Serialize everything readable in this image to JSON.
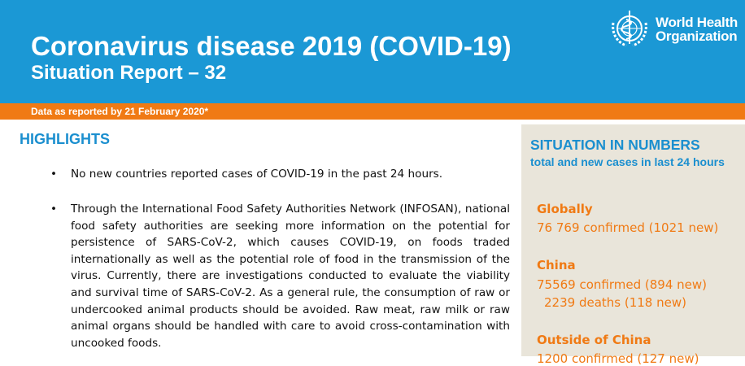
{
  "header": {
    "title": "Coronavirus disease 2019 (COVID-19)",
    "subtitle": "Situation Report – 32",
    "org_name_line1": "World Health",
    "org_name_line2": "Organization",
    "logo_icon": "who-emblem-icon"
  },
  "date_bar": {
    "text": "Data as reported by 21 February 2020*"
  },
  "highlights": {
    "heading": "HIGHLIGHTS",
    "bullets": [
      "No new countries reported cases of COVID-19 in the past 24 hours.",
      "Through the International Food Safety Authorities Network (INFOSAN), national food safety authorities are seeking more information on the potential for persistence of SARS-CoV-2, which causes COVID-19, on foods traded internationally as well as the potential role of food in the transmission of the virus. Currently, there are investigations conducted to evaluate the viability and survival time of SARS-CoV-2. As a general rule, the consumption of raw or undercooked animal products should be avoided. Raw meat, raw milk or raw animal organs should be handled with care to avoid cross-contamination with uncooked foods."
    ]
  },
  "situation": {
    "heading": "SITUATION IN NUMBERS",
    "subheading": "total and new cases in last 24 hours",
    "globally": {
      "label": "Globally",
      "confirmed": "76 769 confirmed (1021 new)"
    },
    "china": {
      "label": "China",
      "confirmed": "75569 confirmed (894 new)",
      "deaths": "2239 deaths (118 new)"
    },
    "outside": {
      "label": "Outside of China",
      "confirmed": "1200 confirmed (127 new)"
    }
  },
  "colors": {
    "blue": "#1b98d5",
    "orange": "#f07a14",
    "sidebar": "#e9e5da"
  }
}
